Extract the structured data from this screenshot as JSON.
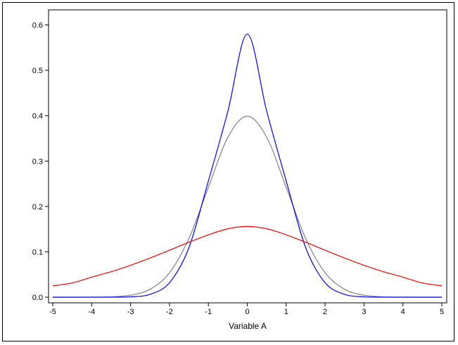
{
  "chart_data": {
    "type": "line",
    "xlabel": "Variable A",
    "ylabel": "",
    "xlim": [
      -5,
      5
    ],
    "ylim": [
      0,
      0.6
    ],
    "xticks": [
      "-5",
      "-4",
      "-3",
      "-2",
      "-1",
      "0",
      "1",
      "2",
      "3",
      "4",
      "5"
    ],
    "yticks": [
      "0.0",
      "0.1",
      "0.2",
      "0.3",
      "0.4",
      "0.5",
      "0.6"
    ],
    "grid": false,
    "legend": "none",
    "x": [
      -5,
      -4.5,
      -4,
      -3.5,
      -3,
      -2.5,
      -2,
      -1.5,
      -1,
      -0.5,
      0,
      0.5,
      1,
      1.5,
      2,
      2.5,
      3,
      3.5,
      4,
      4.5,
      5
    ],
    "series": [
      {
        "color": "#808080",
        "values": [
          1.5e-06,
          1.6e-05,
          0.000134,
          0.000873,
          0.004432,
          0.01753,
          0.05399,
          0.1295,
          0.242,
          0.3521,
          0.3989,
          0.3521,
          0.242,
          0.1295,
          0.05399,
          0.01753,
          0.004432,
          0.000873,
          0.000134,
          1.6e-05,
          1.5e-06
        ]
      },
      {
        "color": "#0000ff",
        "values": [
          0.0,
          0.0,
          6e-06,
          8e-05,
          0.00087,
          0.00636,
          0.0319,
          0.1094,
          0.2562,
          0.4094,
          0.58,
          0.4094,
          0.2562,
          0.1094,
          0.0319,
          0.00636,
          0.00087,
          8e-05,
          6e-06,
          0.0,
          0.0
        ]
      },
      {
        "color": "#ff0000",
        "values": [
          0.0251,
          0.0314,
          0.0443,
          0.0562,
          0.0704,
          0.0864,
          0.1036,
          0.1212,
          0.1376,
          0.1508,
          0.156,
          0.1508,
          0.1376,
          0.1212,
          0.1036,
          0.0864,
          0.0704,
          0.0562,
          0.0443,
          0.0314,
          0.0251
        ]
      }
    ]
  }
}
